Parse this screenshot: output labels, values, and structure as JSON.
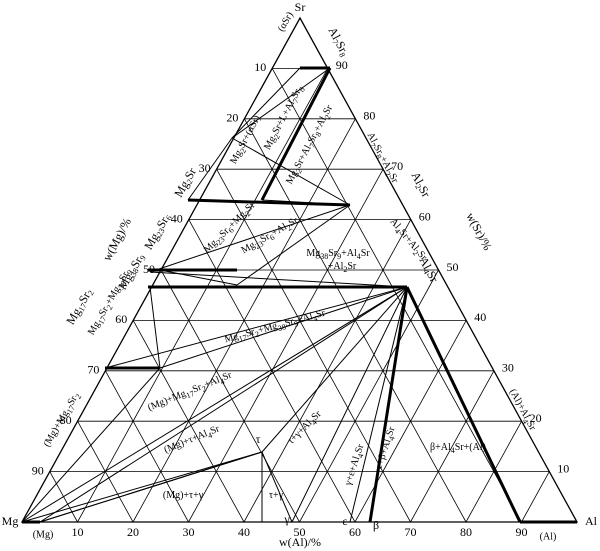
{
  "vertices": {
    "mg": "Mg",
    "al": "Al",
    "sr": "Sr",
    "sr_phase": "(αSr)",
    "mg_phase": "(Mg)",
    "al_phase": "(Al)"
  },
  "axes": {
    "al": {
      "title": "w(Al)/%",
      "ticks": [
        10,
        20,
        30,
        40,
        50,
        60,
        70,
        80,
        90
      ]
    },
    "sr": {
      "title": "w(Sr)/%",
      "ticks": [
        10,
        20,
        30,
        40,
        50,
        60,
        70,
        80,
        90
      ]
    },
    "mg": {
      "title": "w(Mg)/%",
      "ticks": [
        10,
        20,
        30,
        40,
        50,
        60,
        70,
        80,
        90
      ]
    }
  },
  "compounds": [
    "Mg2Sr",
    "Mg23Sr6",
    "Mg38Sr9",
    "Mg17Sr2",
    "Al7Sr8",
    "Al2Sr",
    "Al4Sr"
  ],
  "points": [
    "τ",
    "γ",
    "ε",
    "β"
  ],
  "regions": [
    "Mg2Sr+(αSr)",
    "Mg2Sr+L+Al7Sr8",
    "Mg2Sr+Al7Sr8+Al2Sr",
    "Al7Sr8+Al2Sr",
    "Mg23Sr6+Mg2Sr",
    "Mg23Sr6+Al2Sr",
    "Mg38Sr9+Al4Sr",
    "+Al2Sr",
    "Al4Sr+Al2Sr",
    "Mg17Sr2+Mg38Sr9",
    "Mg17Sr2+Mg38Sr9+Al4Sr",
    "(Mg)+Mg17Sr2",
    "(Mg)+Mg17Sr2+Al4Sr",
    "(Mg)+τ+Al4Sr",
    "(Mg)+τ+γ",
    "τ+γ",
    "τ+γ+Al4Sr",
    "γ+ε+Al4Sr",
    "ε+β+Al4Sr",
    "β+Al4Sr+(Al)",
    "(Al)+Al4Sr"
  ]
}
